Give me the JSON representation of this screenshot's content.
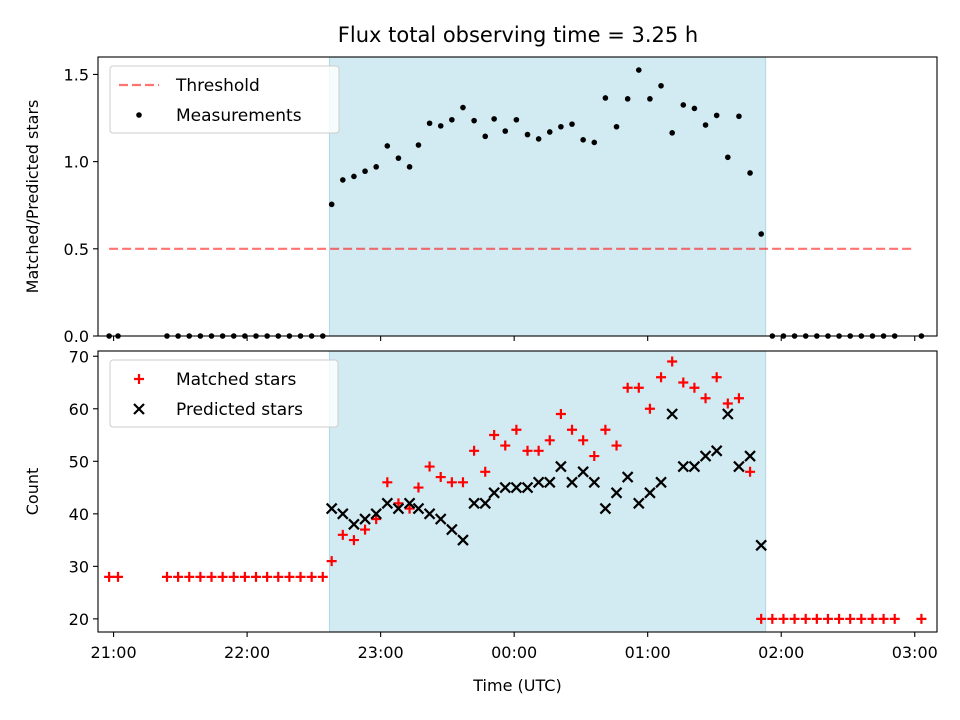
{
  "chart_data": [
    {
      "type": "scatter",
      "title": "Flux total observing time = 3.25 h",
      "ylabel": "Matched/Predicted stars",
      "xlabel": "",
      "xlim": [
        "20:53",
        "03:10"
      ],
      "ylim": [
        0,
        1.6
      ],
      "yticks": [
        0.0,
        0.5,
        1.0,
        1.5
      ],
      "ytick_labels": [
        "0.0",
        "0.5",
        "1.0",
        "1.5"
      ],
      "grid": false,
      "legend_position": "top-left",
      "shaded_interval": [
        "22:37",
        "01:53"
      ],
      "shade_color": "#add8e6",
      "threshold": {
        "name": "Threshold",
        "value": 0.5,
        "x_range": [
          "20:58",
          "03:00"
        ],
        "color": "#ff0000"
      },
      "series": [
        {
          "name": "Measurements",
          "color": "#000000",
          "points": [
            [
              "20:58",
              0
            ],
            [
              "21:02",
              0
            ],
            [
              "21:24",
              0
            ],
            [
              "21:29",
              0
            ],
            [
              "21:34",
              0
            ],
            [
              "21:39",
              0
            ],
            [
              "21:44",
              0
            ],
            [
              "21:49",
              0
            ],
            [
              "21:54",
              0
            ],
            [
              "21:59",
              0
            ],
            [
              "22:04",
              0
            ],
            [
              "22:09",
              0
            ],
            [
              "22:14",
              0
            ],
            [
              "22:19",
              0
            ],
            [
              "22:24",
              0
            ],
            [
              "22:29",
              0
            ],
            [
              "22:34",
              0
            ],
            [
              "22:38",
              0.755
            ],
            [
              "22:43",
              0.895
            ],
            [
              "22:48",
              0.915
            ],
            [
              "22:53",
              0.945
            ],
            [
              "22:58",
              0.97
            ],
            [
              "23:03",
              1.09
            ],
            [
              "23:08",
              1.02
            ],
            [
              "23:13",
              0.97
            ],
            [
              "23:17",
              1.095
            ],
            [
              "23:22",
              1.22
            ],
            [
              "23:27",
              1.205
            ],
            [
              "23:32",
              1.24
            ],
            [
              "23:37",
              1.31
            ],
            [
              "23:42",
              1.235
            ],
            [
              "23:47",
              1.145
            ],
            [
              "23:51",
              1.245
            ],
            [
              "23:56",
              1.175
            ],
            [
              "00:01",
              1.24
            ],
            [
              "00:06",
              1.155
            ],
            [
              "00:11",
              1.13
            ],
            [
              "00:16",
              1.17
            ],
            [
              "00:21",
              1.2
            ],
            [
              "00:26",
              1.215
            ],
            [
              "00:31",
              1.125
            ],
            [
              "00:36",
              1.11
            ],
            [
              "00:41",
              1.365
            ],
            [
              "00:46",
              1.2
            ],
            [
              "00:51",
              1.36
            ],
            [
              "00:56",
              1.525
            ],
            [
              "01:01",
              1.36
            ],
            [
              "01:06",
              1.435
            ],
            [
              "01:11",
              1.165
            ],
            [
              "01:16",
              1.325
            ],
            [
              "01:21",
              1.305
            ],
            [
              "01:26",
              1.21
            ],
            [
              "01:31",
              1.265
            ],
            [
              "01:36",
              1.025
            ],
            [
              "01:41",
              1.26
            ],
            [
              "01:46",
              0.935
            ],
            [
              "01:51",
              0.585
            ],
            [
              "01:56",
              0
            ],
            [
              "02:01",
              0
            ],
            [
              "02:06",
              0
            ],
            [
              "02:11",
              0
            ],
            [
              "02:16",
              0
            ],
            [
              "02:21",
              0
            ],
            [
              "02:26",
              0
            ],
            [
              "02:31",
              0
            ],
            [
              "02:36",
              0
            ],
            [
              "02:41",
              0
            ],
            [
              "02:46",
              0
            ],
            [
              "02:51",
              0
            ],
            [
              "03:03",
              0
            ]
          ]
        }
      ]
    },
    {
      "type": "scatter",
      "title": "",
      "xlabel": "Time (UTC)",
      "ylabel": "Count",
      "xlim": [
        "20:53",
        "03:10"
      ],
      "ylim": [
        17.5,
        71
      ],
      "yticks": [
        20,
        30,
        40,
        50,
        60,
        70
      ],
      "ytick_labels": [
        "20",
        "30",
        "40",
        "50",
        "60",
        "70"
      ],
      "xticks": [
        "21:00",
        "22:00",
        "23:00",
        "00:00",
        "01:00",
        "02:00",
        "03:00"
      ],
      "grid": false,
      "legend_position": "top-left",
      "shaded_interval": [
        "22:37",
        "01:53"
      ],
      "shade_color": "#add8e6",
      "series": [
        {
          "name": "Matched stars",
          "marker": "+",
          "color": "#ff0000",
          "points": [
            [
              "20:58",
              28
            ],
            [
              "21:02",
              28
            ],
            [
              "21:24",
              28
            ],
            [
              "21:29",
              28
            ],
            [
              "21:34",
              28
            ],
            [
              "21:39",
              28
            ],
            [
              "21:44",
              28
            ],
            [
              "21:49",
              28
            ],
            [
              "21:54",
              28
            ],
            [
              "21:59",
              28
            ],
            [
              "22:04",
              28
            ],
            [
              "22:09",
              28
            ],
            [
              "22:14",
              28
            ],
            [
              "22:19",
              28
            ],
            [
              "22:24",
              28
            ],
            [
              "22:29",
              28
            ],
            [
              "22:34",
              28
            ],
            [
              "22:38",
              31
            ],
            [
              "22:43",
              36
            ],
            [
              "22:48",
              35
            ],
            [
              "22:53",
              37
            ],
            [
              "22:58",
              39
            ],
            [
              "23:03",
              46
            ],
            [
              "23:08",
              42
            ],
            [
              "23:13",
              41
            ],
            [
              "23:17",
              45
            ],
            [
              "23:22",
              49
            ],
            [
              "23:27",
              47
            ],
            [
              "23:32",
              46
            ],
            [
              "23:37",
              46
            ],
            [
              "23:42",
              52
            ],
            [
              "23:47",
              48
            ],
            [
              "23:51",
              55
            ],
            [
              "23:56",
              53
            ],
            [
              "00:01",
              56
            ],
            [
              "00:06",
              52
            ],
            [
              "00:11",
              52
            ],
            [
              "00:16",
              54
            ],
            [
              "00:21",
              59
            ],
            [
              "00:26",
              56
            ],
            [
              "00:31",
              54
            ],
            [
              "00:36",
              51
            ],
            [
              "00:41",
              56
            ],
            [
              "00:46",
              53
            ],
            [
              "00:51",
              64
            ],
            [
              "00:56",
              64
            ],
            [
              "01:01",
              60
            ],
            [
              "01:06",
              66
            ],
            [
              "01:11",
              69
            ],
            [
              "01:16",
              65
            ],
            [
              "01:21",
              64
            ],
            [
              "01:26",
              62
            ],
            [
              "01:31",
              66
            ],
            [
              "01:36",
              61
            ],
            [
              "01:41",
              62
            ],
            [
              "01:46",
              48
            ],
            [
              "01:51",
              20
            ],
            [
              "01:56",
              20
            ],
            [
              "02:01",
              20
            ],
            [
              "02:06",
              20
            ],
            [
              "02:11",
              20
            ],
            [
              "02:16",
              20
            ],
            [
              "02:21",
              20
            ],
            [
              "02:26",
              20
            ],
            [
              "02:31",
              20
            ],
            [
              "02:36",
              20
            ],
            [
              "02:41",
              20
            ],
            [
              "02:46",
              20
            ],
            [
              "02:51",
              20
            ],
            [
              "03:03",
              20
            ]
          ]
        },
        {
          "name": "Predicted stars",
          "marker": "x",
          "color": "#000000",
          "points": [
            [
              "22:38",
              41
            ],
            [
              "22:43",
              40
            ],
            [
              "22:48",
              38
            ],
            [
              "22:53",
              39
            ],
            [
              "22:58",
              40
            ],
            [
              "23:03",
              42
            ],
            [
              "23:08",
              41
            ],
            [
              "23:13",
              42
            ],
            [
              "23:17",
              41
            ],
            [
              "23:22",
              40
            ],
            [
              "23:27",
              39
            ],
            [
              "23:32",
              37
            ],
            [
              "23:37",
              35
            ],
            [
              "23:42",
              42
            ],
            [
              "23:47",
              42
            ],
            [
              "23:51",
              44
            ],
            [
              "23:56",
              45
            ],
            [
              "00:01",
              45
            ],
            [
              "00:06",
              45
            ],
            [
              "00:11",
              46
            ],
            [
              "00:16",
              46
            ],
            [
              "00:21",
              49
            ],
            [
              "00:26",
              46
            ],
            [
              "00:31",
              48
            ],
            [
              "00:36",
              46
            ],
            [
              "00:41",
              41
            ],
            [
              "00:46",
              44
            ],
            [
              "00:51",
              47
            ],
            [
              "00:56",
              42
            ],
            [
              "01:01",
              44
            ],
            [
              "01:06",
              46
            ],
            [
              "01:11",
              59
            ],
            [
              "01:16",
              49
            ],
            [
              "01:21",
              49
            ],
            [
              "01:26",
              51
            ],
            [
              "01:31",
              52
            ],
            [
              "01:36",
              59
            ],
            [
              "01:41",
              49
            ],
            [
              "01:46",
              51
            ],
            [
              "01:51",
              34
            ]
          ]
        }
      ]
    }
  ]
}
